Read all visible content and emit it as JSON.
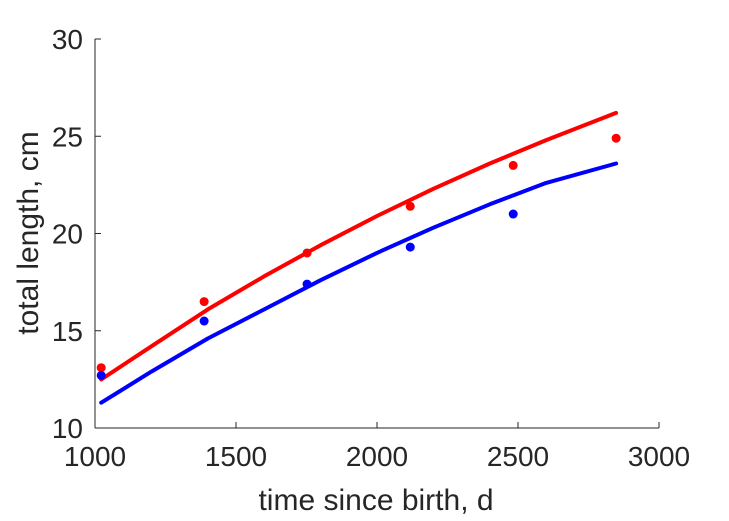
{
  "chart_data": {
    "type": "scatter",
    "title": "",
    "xlabel": "time since birth, d",
    "ylabel": "total length, cm",
    "xlim": [
      1000,
      3000
    ],
    "ylim": [
      10,
      30
    ],
    "xticks": [
      1000,
      1500,
      2000,
      2500,
      3000
    ],
    "yticks": [
      10,
      15,
      20,
      25,
      30
    ],
    "xtick_labels": [
      "1000",
      "1500",
      "2000",
      "2500",
      "3000"
    ],
    "ytick_labels": [
      "10",
      "15",
      "20",
      "25",
      "30"
    ],
    "grid": false,
    "legend": "none",
    "series": [
      {
        "color": "#ff0000",
        "points": {
          "x": [
            1022,
            1387,
            1752,
            2118,
            2483,
            2848
          ],
          "y": [
            13.1,
            16.5,
            19.0,
            21.4,
            23.5,
            24.9
          ]
        },
        "curve": {
          "x": [
            1022,
            1200,
            1400,
            1600,
            1800,
            2000,
            2200,
            2400,
            2600,
            2848
          ],
          "y": [
            12.5,
            14.2,
            16.1,
            17.8,
            19.4,
            20.9,
            22.3,
            23.6,
            24.8,
            26.2
          ]
        }
      },
      {
        "color": "#0000ff",
        "points": {
          "x": [
            1022,
            1387,
            1752,
            2118,
            2483
          ],
          "y": [
            12.7,
            15.5,
            17.4,
            19.3,
            21.0
          ]
        },
        "curve": {
          "x": [
            1022,
            1200,
            1400,
            1600,
            1800,
            2000,
            2200,
            2400,
            2600,
            2848
          ],
          "y": [
            11.3,
            12.9,
            14.6,
            16.1,
            17.6,
            19.0,
            20.3,
            21.5,
            22.6,
            23.6
          ]
        }
      }
    ]
  }
}
